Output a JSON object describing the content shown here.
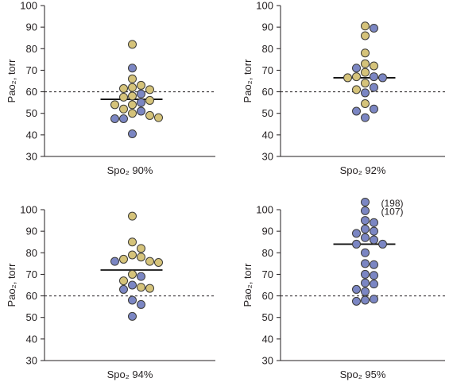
{
  "colors": {
    "tan": "#d5c37a",
    "blue": "#7b86c3",
    "stroke": "#3b3a36",
    "axis": "#231f20"
  },
  "chart_data": [
    {
      "type": "scatter",
      "xlabel": "Spo₂ 90%",
      "ylabel": "Pao₂, torr",
      "ylim": [
        30,
        100
      ],
      "yticks": [
        30,
        40,
        50,
        60,
        70,
        80,
        90,
        100
      ],
      "reference_line": 60,
      "median": 56.5,
      "points": [
        {
          "y": 82,
          "c": "tan"
        },
        {
          "y": 71,
          "c": "blue"
        },
        {
          "y": 66,
          "c": "tan"
        },
        {
          "y": 63,
          "c": "tan"
        },
        {
          "y": 62,
          "c": "tan"
        },
        {
          "y": 61.5,
          "c": "tan"
        },
        {
          "y": 61,
          "c": "tan"
        },
        {
          "y": 59,
          "c": "blue"
        },
        {
          "y": 58,
          "c": "tan"
        },
        {
          "y": 57.5,
          "c": "tan"
        },
        {
          "y": 56,
          "c": "tan"
        },
        {
          "y": 55,
          "c": "blue"
        },
        {
          "y": 54,
          "c": "tan"
        },
        {
          "y": 54,
          "c": "tan"
        },
        {
          "y": 52,
          "c": "tan"
        },
        {
          "y": 51,
          "c": "blue"
        },
        {
          "y": 50,
          "c": "tan"
        },
        {
          "y": 49,
          "c": "tan"
        },
        {
          "y": 47.5,
          "c": "blue"
        },
        {
          "y": 47.5,
          "c": "blue"
        },
        {
          "y": 48,
          "c": "tan"
        },
        {
          "y": 40.5,
          "c": "blue"
        }
      ]
    },
    {
      "type": "scatter",
      "xlabel": "Spo₂ 92%",
      "ylabel": "Pao₂, torr",
      "ylim": [
        30,
        100
      ],
      "yticks": [
        30,
        40,
        50,
        60,
        70,
        80,
        90,
        100
      ],
      "reference_line": 60,
      "median": 66.5,
      "points": [
        {
          "y": 90.5,
          "c": "tan"
        },
        {
          "y": 89.5,
          "c": "blue"
        },
        {
          "y": 86,
          "c": "tan"
        },
        {
          "y": 78,
          "c": "tan"
        },
        {
          "y": 73,
          "c": "tan"
        },
        {
          "y": 72,
          "c": "tan"
        },
        {
          "y": 71,
          "c": "blue"
        },
        {
          "y": 69,
          "c": "tan"
        },
        {
          "y": 67,
          "c": "blue"
        },
        {
          "y": 67,
          "c": "tan"
        },
        {
          "y": 66.5,
          "c": "blue"
        },
        {
          "y": 66.5,
          "c": "tan"
        },
        {
          "y": 64,
          "c": "tan"
        },
        {
          "y": 62,
          "c": "blue"
        },
        {
          "y": 61,
          "c": "tan"
        },
        {
          "y": 59.5,
          "c": "blue"
        },
        {
          "y": 54.5,
          "c": "tan"
        },
        {
          "y": 52,
          "c": "blue"
        },
        {
          "y": 51,
          "c": "blue"
        },
        {
          "y": 48,
          "c": "blue"
        }
      ]
    },
    {
      "type": "scatter",
      "xlabel": "Spo₂ 94%",
      "ylabel": "Pao₂, torr",
      "ylim": [
        30,
        100
      ],
      "yticks": [
        30,
        40,
        50,
        60,
        70,
        80,
        90,
        100
      ],
      "reference_line": 60,
      "median": 72,
      "points": [
        {
          "y": 97,
          "c": "tan"
        },
        {
          "y": 85,
          "c": "tan"
        },
        {
          "y": 82,
          "c": "tan"
        },
        {
          "y": 79,
          "c": "tan"
        },
        {
          "y": 78,
          "c": "tan"
        },
        {
          "y": 77,
          "c": "tan"
        },
        {
          "y": 76,
          "c": "tan"
        },
        {
          "y": 76,
          "c": "blue"
        },
        {
          "y": 75.5,
          "c": "tan"
        },
        {
          "y": 70,
          "c": "tan"
        },
        {
          "y": 69,
          "c": "blue"
        },
        {
          "y": 67,
          "c": "tan"
        },
        {
          "y": 65,
          "c": "blue"
        },
        {
          "y": 64,
          "c": "tan"
        },
        {
          "y": 63.5,
          "c": "tan"
        },
        {
          "y": 63,
          "c": "blue"
        },
        {
          "y": 58,
          "c": "blue"
        },
        {
          "y": 56,
          "c": "blue"
        },
        {
          "y": 50.5,
          "c": "blue"
        }
      ]
    },
    {
      "type": "scatter",
      "xlabel": "Spo₂ 95%",
      "ylabel": "Pao₂, torr",
      "ylim": [
        30,
        100
      ],
      "yticks": [
        30,
        40,
        50,
        60,
        70,
        80,
        90,
        100
      ],
      "reference_line": 60,
      "median": 84,
      "annotations": [
        {
          "text": "(198)",
          "y": 103
        },
        {
          "text": "(107)",
          "y": 99
        }
      ],
      "points": [
        {
          "y": 103.5,
          "c": "blue"
        },
        {
          "y": 99.5,
          "c": "blue"
        },
        {
          "y": 95,
          "c": "blue"
        },
        {
          "y": 94,
          "c": "blue"
        },
        {
          "y": 91,
          "c": "blue"
        },
        {
          "y": 90,
          "c": "blue"
        },
        {
          "y": 89,
          "c": "blue"
        },
        {
          "y": 87,
          "c": "blue"
        },
        {
          "y": 86,
          "c": "blue"
        },
        {
          "y": 84,
          "c": "blue"
        },
        {
          "y": 84,
          "c": "blue"
        },
        {
          "y": 80,
          "c": "blue"
        },
        {
          "y": 75,
          "c": "blue"
        },
        {
          "y": 74.5,
          "c": "blue"
        },
        {
          "y": 70,
          "c": "blue"
        },
        {
          "y": 69.5,
          "c": "blue"
        },
        {
          "y": 66,
          "c": "blue"
        },
        {
          "y": 65.5,
          "c": "blue"
        },
        {
          "y": 63,
          "c": "blue"
        },
        {
          "y": 62,
          "c": "blue"
        },
        {
          "y": 58.5,
          "c": "blue"
        },
        {
          "y": 58,
          "c": "blue"
        },
        {
          "y": 57.5,
          "c": "blue"
        }
      ]
    }
  ]
}
